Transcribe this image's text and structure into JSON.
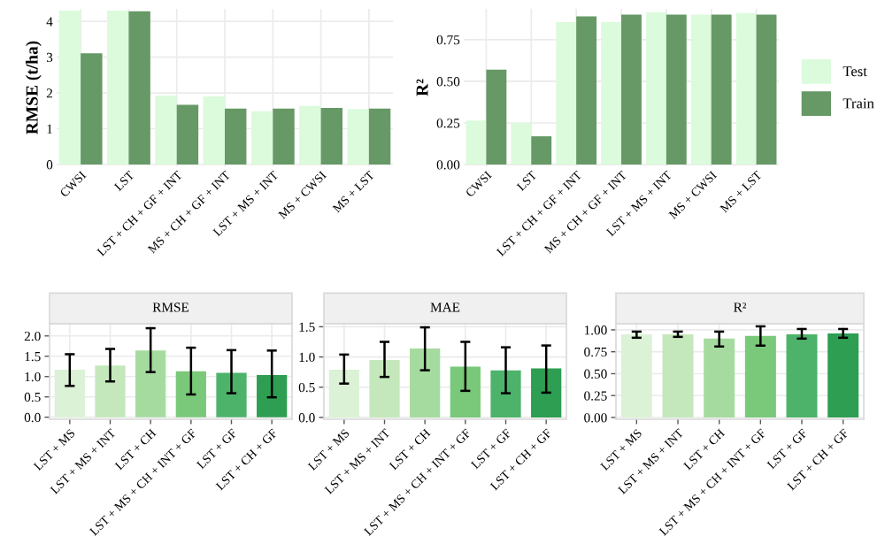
{
  "chart_data": [
    {
      "type": "bar",
      "ylabel": "RMSE (t/ha)",
      "categories": [
        "CWSI",
        "LST",
        "LST + CH + GF + INT",
        "MS + CH + GF + INT",
        "LST + MS + INT",
        "MS + CWSI",
        "MS + LST"
      ],
      "series": [
        {
          "color": "#dbfbdc",
          "values": [
            4.3,
            4.3,
            1.92,
            1.9,
            1.49,
            1.64,
            1.55
          ]
        },
        {
          "color": "#669966",
          "values": [
            3.11,
            4.28,
            1.67,
            1.56,
            1.56,
            1.58,
            1.56
          ]
        }
      ],
      "ylim": [
        -0.05,
        4.35
      ],
      "yticks": [
        0,
        1,
        2,
        3,
        4
      ],
      "grid": true,
      "legend": false
    },
    {
      "type": "bar",
      "ylabel": "R²",
      "categories": [
        "CWSI",
        "LST",
        "LST + CH + GF + INT",
        "MS + CH + GF + INT",
        "LST + MS + INT",
        "MS + CWSI",
        "MS + LST"
      ],
      "series": [
        {
          "name": "Test",
          "color": "#dbfbdc",
          "values": [
            0.265,
            0.25,
            0.855,
            0.855,
            0.915,
            0.9,
            0.91
          ]
        },
        {
          "name": "Train",
          "color": "#669966",
          "values": [
            0.57,
            0.17,
            0.89,
            0.9,
            0.9,
            0.9,
            0.9
          ]
        }
      ],
      "ylim": [
        -0.01,
        0.935
      ],
      "yticks": [
        {
          "value": 0,
          "label": "0.00"
        },
        {
          "value": 0.25,
          "label": "0.25"
        },
        {
          "value": 0.5,
          "label": "0.50"
        },
        {
          "value": 0.75,
          "label": "0.75"
        }
      ],
      "grid": true,
      "legend": "right"
    },
    {
      "type": "bar",
      "title": "RMSE",
      "categories": [
        "LST + MS",
        "LST + MS + INT",
        "LST + CH",
        "LST + MS + CH + INT + GF",
        "LST + GF",
        "LST + CH + GF"
      ],
      "values": [
        1.17,
        1.27,
        1.64,
        1.13,
        1.09,
        1.04
      ],
      "colors": [
        "#dcf2d6",
        "#c4e8bb",
        "#a6dba0",
        "#7ac87a",
        "#4db36a",
        "#2e9e52"
      ],
      "errors": [
        [
          0.77,
          1.55
        ],
        [
          0.88,
          1.68
        ],
        [
          1.11,
          2.19
        ],
        [
          0.56,
          1.71
        ],
        [
          0.59,
          1.65
        ],
        [
          0.49,
          1.64
        ]
      ],
      "ylim": [
        -0.05,
        2.3
      ],
      "yticks": [
        {
          "value": 0,
          "label": "0.0"
        },
        {
          "value": 0.5,
          "label": "0.5"
        },
        {
          "value": 1,
          "label": "1.0"
        },
        {
          "value": 1.5,
          "label": "1.5"
        },
        {
          "value": 2,
          "label": "2.0"
        }
      ],
      "grid": true
    },
    {
      "type": "bar",
      "title": "MAE",
      "categories": [
        "LST + MS",
        "LST + MS + INT",
        "LST + CH",
        "LST + MS + CH + INT + GF",
        "LST + GF",
        "LST + CH + GF"
      ],
      "values": [
        0.79,
        0.95,
        1.14,
        0.84,
        0.78,
        0.81
      ],
      "colors": [
        "#dcf2d6",
        "#c4e8bb",
        "#a6dba0",
        "#7ac87a",
        "#4db36a",
        "#2e9e52"
      ],
      "errors": [
        [
          0.56,
          1.04
        ],
        [
          0.67,
          1.25
        ],
        [
          0.78,
          1.49
        ],
        [
          0.44,
          1.25
        ],
        [
          0.4,
          1.16
        ],
        [
          0.41,
          1.19
        ]
      ],
      "ylim": [
        -0.03,
        1.55
      ],
      "yticks": [
        {
          "value": 0,
          "label": "0.0"
        },
        {
          "value": 0.5,
          "label": "0.5"
        },
        {
          "value": 1,
          "label": "1.0"
        },
        {
          "value": 1.5,
          "label": "1.5"
        }
      ],
      "grid": true
    },
    {
      "type": "bar",
      "title": "R²",
      "categories": [
        "LST + MS",
        "LST + MS + INT",
        "LST + CH",
        "LST + MS + CH + INT + GF",
        "LST + GF",
        "LST + CH + GF"
      ],
      "values": [
        0.95,
        0.95,
        0.9,
        0.93,
        0.95,
        0.96
      ],
      "colors": [
        "#dcf2d6",
        "#c4e8bb",
        "#a6dba0",
        "#7ac87a",
        "#4db36a",
        "#2e9e52"
      ],
      "errors": [
        [
          0.91,
          0.98
        ],
        [
          0.92,
          0.98
        ],
        [
          0.81,
          0.98
        ],
        [
          0.82,
          1.04
        ],
        [
          0.9,
          1.01
        ],
        [
          0.91,
          1.01
        ]
      ],
      "ylim": [
        -0.02,
        1.07
      ],
      "yticks": [
        {
          "value": 0,
          "label": "0.00"
        },
        {
          "value": 0.25,
          "label": "0.25"
        },
        {
          "value": 0.5,
          "label": "0.50"
        },
        {
          "value": 0.75,
          "label": "0.75"
        },
        {
          "value": 1,
          "label": "1.00"
        }
      ],
      "grid": true
    }
  ]
}
